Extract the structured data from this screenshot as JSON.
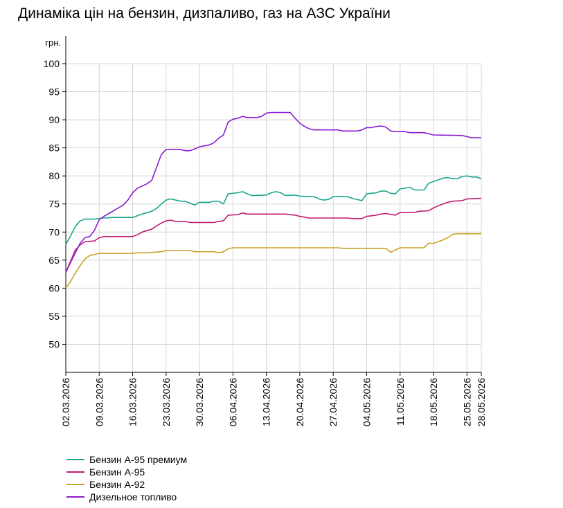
{
  "chart_data": {
    "type": "line",
    "title": "Динаміка цін на бензин, дизпаливо, газ на АЗС України",
    "ylabel": "грн.",
    "xlabel": "",
    "ylim": [
      45,
      100
    ],
    "yticks": [
      50,
      55,
      60,
      65,
      70,
      75,
      80,
      85,
      90,
      95,
      100
    ],
    "xlim": [
      "2026-03-02",
      "2026-05-28"
    ],
    "xtick_labels": [
      "02.03.2026",
      "09.03.2026",
      "16.03.2026",
      "23.03.2026",
      "30.03.2026",
      "06.04.2026",
      "13.04.2026",
      "20.04.2026",
      "27.04.2026",
      "04.05.2026",
      "11.05.2026",
      "18.05.2026",
      "25.05.2026",
      "28.05.2026"
    ],
    "grid": true,
    "legend_position": "bottom-left",
    "series": [
      {
        "name": "Бензин А-95 премиум",
        "color": "#1aa58a",
        "points": [
          [
            "2026-03-02",
            67.8
          ],
          [
            "2026-03-03",
            69.3
          ],
          [
            "2026-03-04",
            71.0
          ],
          [
            "2026-03-05",
            72.0
          ],
          [
            "2026-03-06",
            72.3
          ],
          [
            "2026-03-08",
            72.3
          ],
          [
            "2026-03-10",
            72.5
          ],
          [
            "2026-03-12",
            72.6
          ],
          [
            "2026-03-16",
            72.6
          ],
          [
            "2026-03-18",
            73.2
          ],
          [
            "2026-03-20",
            73.7
          ],
          [
            "2026-03-21",
            74.2
          ],
          [
            "2026-03-22",
            75.0
          ],
          [
            "2026-03-23",
            75.7
          ],
          [
            "2026-03-24",
            75.9
          ],
          [
            "2026-03-26",
            75.5
          ],
          [
            "2026-03-27",
            75.5
          ],
          [
            "2026-03-29",
            74.8
          ],
          [
            "2026-03-30",
            75.3
          ],
          [
            "2026-04-01",
            75.3
          ],
          [
            "2026-04-02",
            75.5
          ],
          [
            "2026-04-03",
            75.5
          ],
          [
            "2026-04-04",
            75.0
          ],
          [
            "2026-04-05",
            76.8
          ],
          [
            "2026-04-06",
            76.9
          ],
          [
            "2026-04-07",
            77.0
          ],
          [
            "2026-04-08",
            77.2
          ],
          [
            "2026-04-09",
            76.8
          ],
          [
            "2026-04-10",
            76.5
          ],
          [
            "2026-04-13",
            76.6
          ],
          [
            "2026-04-14",
            77.0
          ],
          [
            "2026-04-15",
            77.2
          ],
          [
            "2026-04-16",
            77.0
          ],
          [
            "2026-04-17",
            76.5
          ],
          [
            "2026-04-19",
            76.6
          ],
          [
            "2026-04-20",
            76.4
          ],
          [
            "2026-04-22",
            76.3
          ],
          [
            "2026-04-23",
            76.3
          ],
          [
            "2026-04-24",
            75.9
          ],
          [
            "2026-04-25",
            75.7
          ],
          [
            "2026-04-26",
            75.8
          ],
          [
            "2026-04-27",
            76.3
          ],
          [
            "2026-04-30",
            76.3
          ],
          [
            "2026-05-01",
            76.0
          ],
          [
            "2026-05-03",
            75.6
          ],
          [
            "2026-05-04",
            76.8
          ],
          [
            "2026-05-05",
            76.9
          ],
          [
            "2026-05-06",
            77.0
          ],
          [
            "2026-05-07",
            77.3
          ],
          [
            "2026-05-08",
            77.3
          ],
          [
            "2026-05-09",
            76.9
          ],
          [
            "2026-05-10",
            76.8
          ],
          [
            "2026-05-11",
            77.7
          ],
          [
            "2026-05-12",
            77.8
          ],
          [
            "2026-05-13",
            78.0
          ],
          [
            "2026-05-14",
            77.5
          ],
          [
            "2026-05-16",
            77.5
          ],
          [
            "2026-05-17",
            78.7
          ],
          [
            "2026-05-18",
            79.0
          ],
          [
            "2026-05-19",
            79.3
          ],
          [
            "2026-05-20",
            79.6
          ],
          [
            "2026-05-21",
            79.7
          ],
          [
            "2026-05-22",
            79.5
          ],
          [
            "2026-05-23",
            79.5
          ],
          [
            "2026-05-24",
            79.9
          ],
          [
            "2026-05-25",
            80.0
          ],
          [
            "2026-05-26",
            79.8
          ],
          [
            "2026-05-27",
            79.8
          ],
          [
            "2026-05-28",
            79.5
          ]
        ]
      },
      {
        "name": "Бензин А-95",
        "color": "#c01a6e",
        "points": [
          [
            "2026-03-02",
            62.8
          ],
          [
            "2026-03-03",
            64.8
          ],
          [
            "2026-03-04",
            66.8
          ],
          [
            "2026-03-05",
            67.7
          ],
          [
            "2026-03-06",
            68.3
          ],
          [
            "2026-03-08",
            68.4
          ],
          [
            "2026-03-09",
            69.0
          ],
          [
            "2026-03-10",
            69.2
          ],
          [
            "2026-03-16",
            69.2
          ],
          [
            "2026-03-17",
            69.5
          ],
          [
            "2026-03-18",
            70.0
          ],
          [
            "2026-03-20",
            70.5
          ],
          [
            "2026-03-21",
            71.1
          ],
          [
            "2026-03-22",
            71.6
          ],
          [
            "2026-03-23",
            72.0
          ],
          [
            "2026-03-24",
            72.1
          ],
          [
            "2026-03-25",
            71.9
          ],
          [
            "2026-03-27",
            71.9
          ],
          [
            "2026-03-28",
            71.7
          ],
          [
            "2026-04-02",
            71.7
          ],
          [
            "2026-04-03",
            71.9
          ],
          [
            "2026-04-04",
            72.0
          ],
          [
            "2026-04-05",
            73.0
          ],
          [
            "2026-04-07",
            73.1
          ],
          [
            "2026-04-08",
            73.4
          ],
          [
            "2026-04-09",
            73.2
          ],
          [
            "2026-04-17",
            73.2
          ],
          [
            "2026-04-19",
            73.0
          ],
          [
            "2026-04-20",
            72.8
          ],
          [
            "2026-04-22",
            72.5
          ],
          [
            "2026-04-30",
            72.5
          ],
          [
            "2026-05-01",
            72.4
          ],
          [
            "2026-05-03",
            72.4
          ],
          [
            "2026-05-04",
            72.8
          ],
          [
            "2026-05-06",
            73.0
          ],
          [
            "2026-05-07",
            73.2
          ],
          [
            "2026-05-08",
            73.3
          ],
          [
            "2026-05-10",
            73.0
          ],
          [
            "2026-05-11",
            73.5
          ],
          [
            "2026-05-14",
            73.5
          ],
          [
            "2026-05-15",
            73.7
          ],
          [
            "2026-05-17",
            73.8
          ],
          [
            "2026-05-18",
            74.3
          ],
          [
            "2026-05-19",
            74.7
          ],
          [
            "2026-05-20",
            75.0
          ],
          [
            "2026-05-21",
            75.3
          ],
          [
            "2026-05-22",
            75.5
          ],
          [
            "2026-05-24",
            75.6
          ],
          [
            "2026-05-25",
            75.9
          ],
          [
            "2026-05-28",
            76.0
          ]
        ]
      },
      {
        "name": "Бензин А-92",
        "color": "#c9a227",
        "points": [
          [
            "2026-03-02",
            60.0
          ],
          [
            "2026-03-03",
            61.2
          ],
          [
            "2026-03-04",
            62.7
          ],
          [
            "2026-03-05",
            64.0
          ],
          [
            "2026-03-06",
            65.2
          ],
          [
            "2026-03-07",
            65.8
          ],
          [
            "2026-03-08",
            66.0
          ],
          [
            "2026-03-09",
            66.2
          ],
          [
            "2026-03-16",
            66.2
          ],
          [
            "2026-03-17",
            66.3
          ],
          [
            "2026-03-19",
            66.3
          ],
          [
            "2026-03-22",
            66.5
          ],
          [
            "2026-03-23",
            66.7
          ],
          [
            "2026-03-28",
            66.7
          ],
          [
            "2026-03-29",
            66.5
          ],
          [
            "2026-04-02",
            66.5
          ],
          [
            "2026-04-03",
            66.3
          ],
          [
            "2026-04-04",
            66.5
          ],
          [
            "2026-04-05",
            67.0
          ],
          [
            "2026-04-06",
            67.2
          ],
          [
            "2026-04-28",
            67.2
          ],
          [
            "2026-04-29",
            67.1
          ],
          [
            "2026-05-08",
            67.1
          ],
          [
            "2026-05-09",
            66.4
          ],
          [
            "2026-05-10",
            66.8
          ],
          [
            "2026-05-11",
            67.2
          ],
          [
            "2026-05-16",
            67.2
          ],
          [
            "2026-05-17",
            68.0
          ],
          [
            "2026-05-18",
            68.0
          ],
          [
            "2026-05-19",
            68.3
          ],
          [
            "2026-05-20",
            68.6
          ],
          [
            "2026-05-21",
            69.0
          ],
          [
            "2026-05-22",
            69.6
          ],
          [
            "2026-05-23",
            69.7
          ],
          [
            "2026-05-28",
            69.7
          ]
        ]
      },
      {
        "name": "Дизельное топливо",
        "color": "#8a1ad0",
        "points": [
          [
            "2026-03-02",
            62.8
          ],
          [
            "2026-03-03",
            64.6
          ],
          [
            "2026-03-04",
            66.3
          ],
          [
            "2026-03-05",
            68.0
          ],
          [
            "2026-03-06",
            69.0
          ],
          [
            "2026-03-07",
            69.2
          ],
          [
            "2026-03-08",
            70.3
          ],
          [
            "2026-03-09",
            72.2
          ],
          [
            "2026-03-10",
            72.8
          ],
          [
            "2026-03-11",
            73.3
          ],
          [
            "2026-03-12",
            73.8
          ],
          [
            "2026-03-13",
            74.3
          ],
          [
            "2026-03-14",
            74.8
          ],
          [
            "2026-03-15",
            75.7
          ],
          [
            "2026-03-16",
            77.0
          ],
          [
            "2026-03-17",
            77.8
          ],
          [
            "2026-03-18",
            78.2
          ],
          [
            "2026-03-19",
            78.6
          ],
          [
            "2026-03-20",
            79.2
          ],
          [
            "2026-03-21",
            81.5
          ],
          [
            "2026-03-22",
            83.8
          ],
          [
            "2026-03-23",
            84.7
          ],
          [
            "2026-03-26",
            84.7
          ],
          [
            "2026-03-27",
            84.5
          ],
          [
            "2026-03-28",
            84.5
          ],
          [
            "2026-03-29",
            84.8
          ],
          [
            "2026-03-30",
            85.2
          ],
          [
            "2026-04-01",
            85.5
          ],
          [
            "2026-04-02",
            85.9
          ],
          [
            "2026-04-03",
            86.7
          ],
          [
            "2026-04-04",
            87.3
          ],
          [
            "2026-04-05",
            89.6
          ],
          [
            "2026-04-06",
            90.1
          ],
          [
            "2026-04-07",
            90.3
          ],
          [
            "2026-04-08",
            90.6
          ],
          [
            "2026-04-09",
            90.4
          ],
          [
            "2026-04-10",
            90.4
          ],
          [
            "2026-04-11",
            90.4
          ],
          [
            "2026-04-12",
            90.6
          ],
          [
            "2026-04-13",
            91.2
          ],
          [
            "2026-04-14",
            91.3
          ],
          [
            "2026-04-18",
            91.3
          ],
          [
            "2026-04-19",
            90.3
          ],
          [
            "2026-04-20",
            89.4
          ],
          [
            "2026-04-21",
            88.8
          ],
          [
            "2026-04-22",
            88.4
          ],
          [
            "2026-04-23",
            88.2
          ],
          [
            "2026-04-28",
            88.2
          ],
          [
            "2026-04-29",
            88.0
          ],
          [
            "2026-05-02",
            88.0
          ],
          [
            "2026-05-03",
            88.2
          ],
          [
            "2026-05-04",
            88.6
          ],
          [
            "2026-05-05",
            88.6
          ],
          [
            "2026-05-06",
            88.8
          ],
          [
            "2026-05-07",
            88.9
          ],
          [
            "2026-05-08",
            88.7
          ],
          [
            "2026-05-09",
            88.0
          ],
          [
            "2026-05-10",
            87.9
          ],
          [
            "2026-05-12",
            87.9
          ],
          [
            "2026-05-13",
            87.7
          ],
          [
            "2026-05-16",
            87.7
          ],
          [
            "2026-05-17",
            87.5
          ],
          [
            "2026-05-18",
            87.3
          ],
          [
            "2026-05-24",
            87.2
          ],
          [
            "2026-05-25",
            87.0
          ],
          [
            "2026-05-26",
            86.8
          ],
          [
            "2026-05-28",
            86.8
          ]
        ]
      }
    ]
  }
}
